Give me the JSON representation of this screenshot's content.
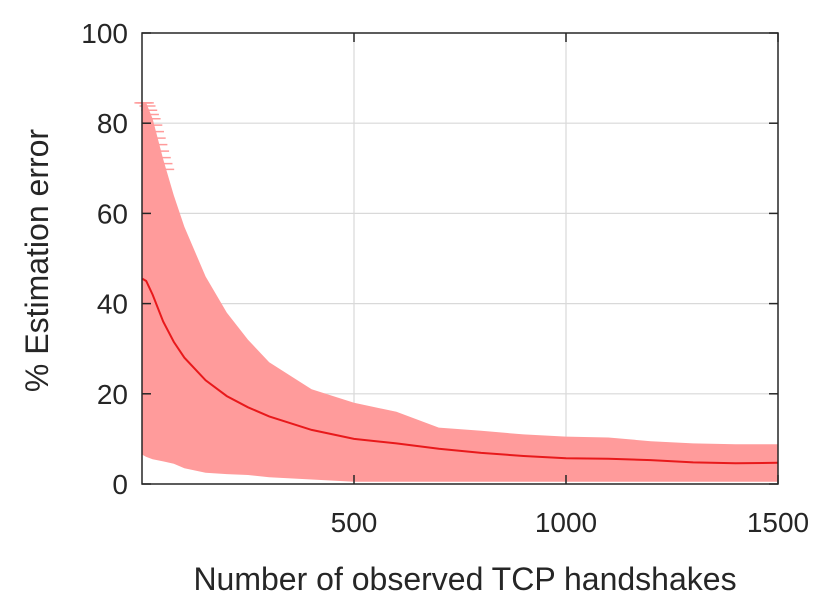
{
  "chart_data": {
    "type": "line",
    "title": "",
    "xlabel": "Number of observed TCP handshakes",
    "ylabel": "% Estimation error",
    "xlim": [
      0,
      1500
    ],
    "ylim": [
      0,
      100
    ],
    "xticks": [
      500,
      1000,
      1500
    ],
    "yticks": [
      0,
      20,
      40,
      60,
      80,
      100
    ],
    "grid": true,
    "colors": {
      "mean_line": "#e8191b",
      "error_band": "#ff9b9b",
      "axis": "#262626",
      "grid": "#d9d9d9"
    },
    "series": [
      {
        "x": [
          1,
          10,
          25,
          50,
          75,
          100,
          150,
          200,
          250,
          300,
          400,
          500,
          600,
          700,
          800,
          900,
          1000,
          1100,
          1200,
          1300,
          1400,
          1500
        ],
        "y": [
          45.5,
          45,
          42,
          36,
          31.5,
          28,
          23,
          19.5,
          17,
          15,
          12,
          10,
          9,
          7.8,
          6.9,
          6.2,
          5.7,
          5.6,
          5.3,
          4.8,
          4.6,
          4.7
        ]
      }
    ],
    "error_band": {
      "x": [
        1,
        10,
        25,
        50,
        75,
        100,
        150,
        200,
        250,
        300,
        400,
        500,
        600,
        700,
        800,
        900,
        1000,
        1100,
        1200,
        1300,
        1400,
        1500
      ],
      "upper": [
        84.5,
        84.5,
        81,
        72,
        64,
        57,
        46,
        38,
        32,
        27,
        21,
        18,
        16,
        12.5,
        11.8,
        11,
        10.5,
        10.3,
        9.5,
        9,
        8.8,
        8.8
      ],
      "lower": [
        6.5,
        6,
        5.5,
        5,
        4.5,
        3.5,
        2.5,
        2.2,
        2,
        1.5,
        1,
        0.5,
        0.5,
        0.5,
        0.5,
        0.5,
        0.5,
        0.5,
        0.5,
        0.5,
        0.5,
        0.5
      ]
    }
  }
}
